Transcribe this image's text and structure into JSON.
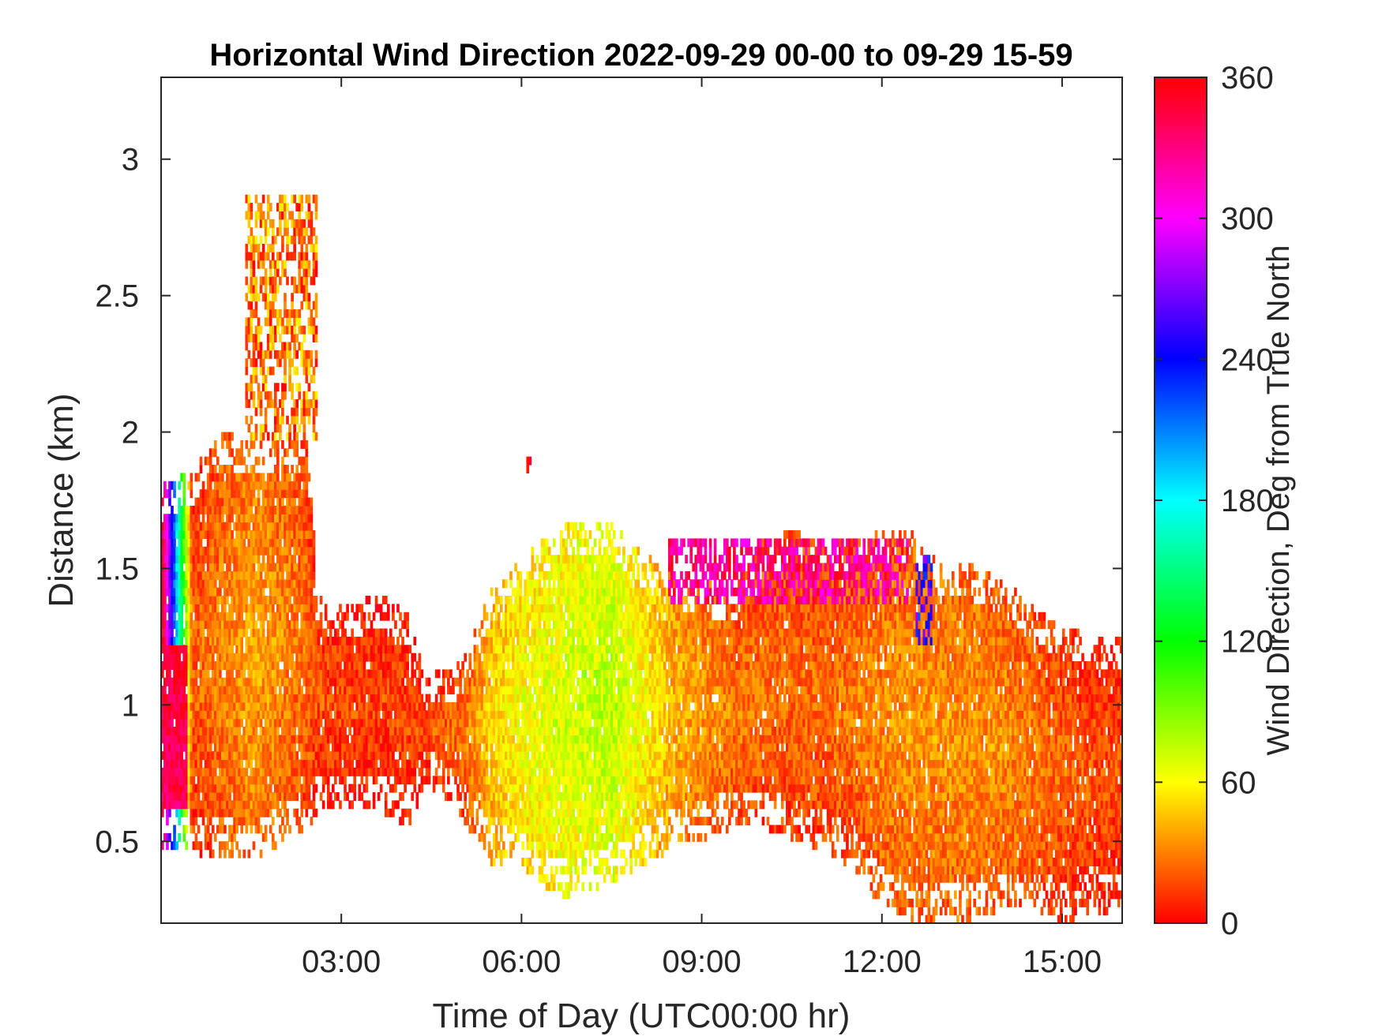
{
  "chart_data": {
    "type": "heatmap",
    "title": "Horizontal Wind Direction 2022-09-29 00-00 to 09-29 15-59",
    "xlabel": "Time of Day (UTC00:00 hr)",
    "ylabel": "Distance (km)",
    "colorbar_label": "Wind Direction, Deg from True North",
    "x_range_hours": [
      0,
      16
    ],
    "y_range_km": [
      0.2,
      3.3
    ],
    "x_ticks": [
      {
        "value": 3,
        "label": "03:00"
      },
      {
        "value": 6,
        "label": "06:00"
      },
      {
        "value": 9,
        "label": "09:00"
      },
      {
        "value": 12,
        "label": "12:00"
      },
      {
        "value": 15,
        "label": "15:00"
      }
    ],
    "y_ticks": [
      {
        "value": 0.5,
        "label": "0.5"
      },
      {
        "value": 1,
        "label": "1"
      },
      {
        "value": 1.5,
        "label": "1.5"
      },
      {
        "value": 2,
        "label": "2"
      },
      {
        "value": 2.5,
        "label": "2.5"
      },
      {
        "value": 3,
        "label": "3"
      }
    ],
    "colorbar_range_deg": [
      0,
      360
    ],
    "colorbar_ticks": [
      {
        "value": 0,
        "label": "0"
      },
      {
        "value": 60,
        "label": "60"
      },
      {
        "value": 120,
        "label": "120"
      },
      {
        "value": 180,
        "label": "180"
      },
      {
        "value": 240,
        "label": "240"
      },
      {
        "value": 300,
        "label": "300"
      },
      {
        "value": 360,
        "label": "360"
      }
    ],
    "colormap": "hsv",
    "grid": false,
    "data_envelope": {
      "time_hours": [
        0.0,
        0.5,
        1.0,
        1.5,
        2.0,
        2.4,
        2.6,
        3.0,
        3.6,
        4.1,
        4.4,
        5.0,
        5.5,
        6.0,
        6.6,
        7.0,
        7.5,
        8.0,
        8.5,
        9.0,
        9.5,
        10.0,
        10.5,
        11.0,
        11.5,
        12.0,
        12.5,
        12.9,
        13.5,
        14.0,
        14.5,
        15.0,
        15.5,
        16.0
      ],
      "lower_km": [
        0.52,
        0.5,
        0.5,
        0.45,
        0.55,
        0.58,
        0.66,
        0.65,
        0.66,
        0.6,
        0.75,
        0.62,
        0.46,
        0.44,
        0.34,
        0.36,
        0.4,
        0.45,
        0.52,
        0.55,
        0.6,
        0.6,
        0.55,
        0.52,
        0.45,
        0.3,
        0.25,
        0.25,
        0.26,
        0.3,
        0.3,
        0.25,
        0.28,
        0.3
      ],
      "upper_km": [
        1.75,
        1.8,
        1.95,
        1.9,
        1.92,
        1.92,
        1.35,
        1.3,
        1.35,
        1.28,
        1.05,
        1.1,
        1.38,
        1.48,
        1.6,
        1.62,
        1.6,
        1.5,
        1.42,
        1.4,
        1.36,
        1.55,
        1.58,
        1.55,
        1.55,
        1.58,
        1.58,
        1.48,
        1.45,
        1.4,
        1.3,
        1.22,
        1.2,
        1.2
      ],
      "direction_deg": [
        345,
        10,
        20,
        28,
        22,
        15,
        8,
        5,
        5,
        6,
        8,
        15,
        40,
        52,
        58,
        62,
        65,
        50,
        35,
        25,
        18,
        16,
        14,
        14,
        18,
        22,
        24,
        24,
        24,
        22,
        18,
        12,
        8,
        6
      ]
    },
    "features": [
      {
        "name": "magenta layer aloft",
        "time_hours": [
          8.4,
          12.4
        ],
        "km": [
          1.35,
          1.6
        ],
        "direction_deg": 325
      },
      {
        "name": "tall plumes early",
        "time_hours": [
          1.4,
          2.6
        ],
        "km": [
          1.95,
          2.85
        ],
        "direction_deg": 30
      },
      {
        "name": "blue streak",
        "time_hours": [
          12.55,
          12.8
        ],
        "km": [
          1.2,
          1.55
        ],
        "direction_deg": 250
      },
      {
        "name": "red blob",
        "time_hours": [
          6.05,
          6.15
        ],
        "km": [
          1.82,
          1.9
        ],
        "direction_deg": 355
      }
    ]
  }
}
